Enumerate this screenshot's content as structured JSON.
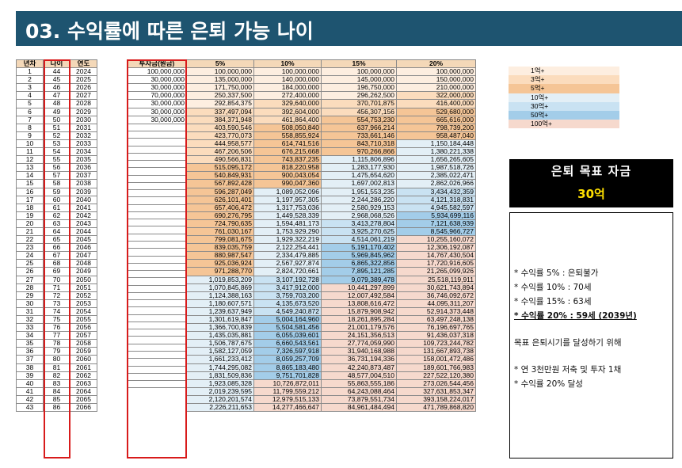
{
  "title": "03. 수익률에 따른 은퇴 가능 나이",
  "headers": {
    "nyeoncha": "년차",
    "age": "나이",
    "year": "연도",
    "investment": "투자금(원금)",
    "r5": "5%",
    "r10": "10%",
    "r15": "15%",
    "r20": "20%"
  },
  "rows": [
    [
      "1",
      "44",
      "2024",
      "100,000,000",
      "100,000,000",
      "100,000,000",
      "100,000,000",
      "100,000,000"
    ],
    [
      "2",
      "45",
      "2025",
      "30,000,000",
      "135,000,000",
      "140,000,000",
      "145,000,000",
      "150,000,000"
    ],
    [
      "3",
      "46",
      "2026",
      "30,000,000",
      "171,750,000",
      "184,000,000",
      "196,750,000",
      "210,000,000"
    ],
    [
      "4",
      "47",
      "2027",
      "70,000,000",
      "250,337,500",
      "272,400,000",
      "296,262,500",
      "322,000,000"
    ],
    [
      "5",
      "48",
      "2028",
      "30,000,000",
      "292,854,375",
      "329,640,000",
      "370,701,875",
      "416,400,000"
    ],
    [
      "6",
      "49",
      "2029",
      "30,000,000",
      "337,497,094",
      "392,604,000",
      "456,307,156",
      "529,680,000"
    ],
    [
      "7",
      "50",
      "2030",
      "30,000,000",
      "384,371,948",
      "461,864,400",
      "554,753,230",
      "665,616,000"
    ],
    [
      "8",
      "51",
      "2031",
      "",
      "403,590,546",
      "508,050,840",
      "637,966,214",
      "798,739,200"
    ],
    [
      "9",
      "52",
      "2032",
      "",
      "423,770,073",
      "558,855,924",
      "733,661,146",
      "958,487,040"
    ],
    [
      "10",
      "53",
      "2033",
      "",
      "444,958,577",
      "614,741,516",
      "843,710,318",
      "1,150,184,448"
    ],
    [
      "11",
      "54",
      "2034",
      "",
      "467,206,506",
      "676,215,668",
      "970,266,866",
      "1,380,221,338"
    ],
    [
      "12",
      "55",
      "2035",
      "",
      "490,566,831",
      "743,837,235",
      "1,115,806,896",
      "1,656,265,605"
    ],
    [
      "13",
      "56",
      "2036",
      "",
      "515,095,172",
      "818,220,958",
      "1,283,177,930",
      "1,987,518,726"
    ],
    [
      "14",
      "57",
      "2037",
      "",
      "540,849,931",
      "900,043,054",
      "1,475,654,620",
      "2,385,022,471"
    ],
    [
      "15",
      "58",
      "2038",
      "",
      "567,892,428",
      "990,047,360",
      "1,697,002,813",
      "2,862,026,966"
    ],
    [
      "16",
      "59",
      "2039",
      "",
      "596,287,049",
      "1,089,052,096",
      "1,951,553,235",
      "3,434,432,359"
    ],
    [
      "17",
      "60",
      "2040",
      "",
      "626,101,401",
      "1,197,957,305",
      "2,244,286,220",
      "4,121,318,831"
    ],
    [
      "18",
      "61",
      "2041",
      "",
      "657,406,472",
      "1,317,753,036",
      "2,580,929,153",
      "4,945,582,597"
    ],
    [
      "19",
      "62",
      "2042",
      "",
      "690,276,795",
      "1,449,528,339",
      "2,968,068,526",
      "5,934,699,116"
    ],
    [
      "20",
      "63",
      "2043",
      "",
      "724,790,635",
      "1,594,481,173",
      "3,413,278,804",
      "7,121,638,939"
    ],
    [
      "21",
      "64",
      "2044",
      "",
      "761,030,167",
      "1,753,929,290",
      "3,925,270,625",
      "8,545,966,727"
    ],
    [
      "22",
      "65",
      "2045",
      "",
      "799,081,675",
      "1,929,322,219",
      "4,514,061,219",
      "10,255,160,072"
    ],
    [
      "23",
      "66",
      "2046",
      "",
      "839,035,759",
      "2,122,254,441",
      "5,191,170,402",
      "12,306,192,087"
    ],
    [
      "24",
      "67",
      "2047",
      "",
      "880,987,547",
      "2,334,479,885",
      "5,969,845,962",
      "14,767,430,504"
    ],
    [
      "25",
      "68",
      "2048",
      "",
      "925,036,924",
      "2,567,927,874",
      "6,865,322,856",
      "17,720,916,605"
    ],
    [
      "26",
      "69",
      "2049",
      "",
      "971,288,770",
      "2,824,720,661",
      "7,895,121,285",
      "21,265,099,926"
    ],
    [
      "27",
      "70",
      "2050",
      "",
      "1,019,853,209",
      "3,107,192,728",
      "9,079,389,478",
      "25,518,119,911"
    ],
    [
      "28",
      "71",
      "2051",
      "",
      "1,070,845,869",
      "3,417,912,000",
      "10,441,297,899",
      "30,621,743,894"
    ],
    [
      "29",
      "72",
      "2052",
      "",
      "1,124,388,163",
      "3,759,703,200",
      "12,007,492,584",
      "36,746,092,672"
    ],
    [
      "30",
      "73",
      "2053",
      "",
      "1,180,607,571",
      "4,135,673,520",
      "13,808,616,472",
      "44,095,311,207"
    ],
    [
      "31",
      "74",
      "2054",
      "",
      "1,239,637,949",
      "4,549,240,872",
      "15,879,908,942",
      "52,914,373,448"
    ],
    [
      "32",
      "75",
      "2055",
      "",
      "1,301,619,847",
      "5,004,164,960",
      "18,261,895,284",
      "63,497,248,138"
    ],
    [
      "33",
      "76",
      "2056",
      "",
      "1,366,700,839",
      "5,504,581,456",
      "21,001,179,576",
      "76,196,697,765"
    ],
    [
      "34",
      "77",
      "2057",
      "",
      "1,435,035,881",
      "6,055,039,601",
      "24,151,356,513",
      "91,436,037,318"
    ],
    [
      "35",
      "78",
      "2058",
      "",
      "1,506,787,675",
      "6,660,543,561",
      "27,774,059,990",
      "109,723,244,782"
    ],
    [
      "36",
      "79",
      "2059",
      "",
      "1,582,127,059",
      "7,326,597,918",
      "31,940,168,988",
      "131,667,893,738"
    ],
    [
      "37",
      "80",
      "2060",
      "",
      "1,661,233,412",
      "8,059,257,709",
      "36,731,194,336",
      "158,001,472,486"
    ],
    [
      "38",
      "81",
      "2061",
      "",
      "1,744,295,082",
      "8,865,183,480",
      "42,240,873,487",
      "189,601,766,983"
    ],
    [
      "39",
      "82",
      "2062",
      "",
      "1,831,509,836",
      "9,751,701,828",
      "48,577,004,510",
      "227,522,120,380"
    ],
    [
      "40",
      "83",
      "2063",
      "",
      "1,923,085,328",
      "10,726,872,011",
      "55,863,555,186",
      "273,026,544,456"
    ],
    [
      "41",
      "84",
      "2064",
      "",
      "2,019,239,595",
      "11,799,559,212",
      "64,243,088,464",
      "327,631,853,347"
    ],
    [
      "42",
      "85",
      "2065",
      "",
      "2,120,201,574",
      "12,979,515,133",
      "73,879,551,734",
      "393,158,224,017"
    ],
    [
      "43",
      "86",
      "2066",
      "",
      "2,226,211,653",
      "14,277,466,647",
      "84,961,484,494",
      "471,789,868,820"
    ]
  ],
  "legend": [
    {
      "label": "1억+",
      "color": "#fdeee0"
    },
    {
      "label": "3억+",
      "color": "#fbdcbd"
    },
    {
      "label": "5억+",
      "color": "#f5c596"
    },
    {
      "label": "10억+",
      "color": "#e3eff6"
    },
    {
      "label": "30억+",
      "color": "#c9e2f2"
    },
    {
      "label": "50억+",
      "color": "#a3cde9"
    },
    {
      "label": "100억+",
      "color": "#f6d9cd"
    }
  ],
  "goal": {
    "title": "은퇴 목표 자금",
    "value": "30억"
  },
  "notes": {
    "n1": "* 수익률 5% : 은퇴불가",
    "n2": "* 수익률 10% : 70세",
    "n3": "* 수익률 15% : 63세",
    "n4": "* 수익률 20% : 59세 (2039년)",
    "n5": "목표 은퇴시기를 달성하기 위해",
    "n6": "* 연 3천만원 저축 및 투자 1채",
    "n7": "* 수익률 20% 달성"
  }
}
